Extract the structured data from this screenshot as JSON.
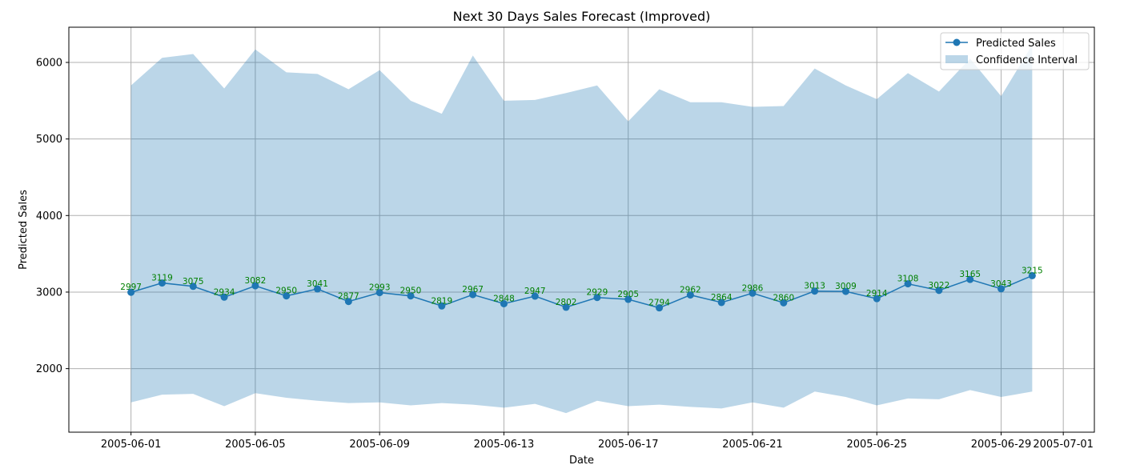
{
  "chart_data": {
    "type": "line",
    "title": "Next 30 Days Sales Forecast (Improved)",
    "xlabel": "Date",
    "ylabel": "Predicted Sales",
    "x": [
      "2005-06-01",
      "2005-06-02",
      "2005-06-03",
      "2005-06-04",
      "2005-06-05",
      "2005-06-06",
      "2005-06-07",
      "2005-06-08",
      "2005-06-09",
      "2005-06-10",
      "2005-06-11",
      "2005-06-12",
      "2005-06-13",
      "2005-06-14",
      "2005-06-15",
      "2005-06-16",
      "2005-06-17",
      "2005-06-18",
      "2005-06-19",
      "2005-06-20",
      "2005-06-21",
      "2005-06-22",
      "2005-06-23",
      "2005-06-24",
      "2005-06-25",
      "2005-06-26",
      "2005-06-27",
      "2005-06-28",
      "2005-06-29",
      "2005-06-30"
    ],
    "xlim": [
      "2005-05-30",
      "2005-07-02"
    ],
    "x_ticks": [
      "2005-06-01",
      "2005-06-05",
      "2005-06-09",
      "2005-06-13",
      "2005-06-17",
      "2005-06-21",
      "2005-06-25",
      "2005-06-29",
      "2005-07-01"
    ],
    "ylim": [
      1170,
      6460
    ],
    "y_ticks": [
      2000,
      3000,
      4000,
      5000,
      6000
    ],
    "grid": true,
    "legend_position": "top-right",
    "series": [
      {
        "name": "Predicted Sales",
        "color": "#1f77b4",
        "marker": "circle",
        "values": [
          2997,
          3119,
          3075,
          2934,
          3082,
          2950,
          3041,
          2877,
          2993,
          2950,
          2819,
          2967,
          2848,
          2947,
          2802,
          2929,
          2905,
          2794,
          2962,
          2864,
          2986,
          2860,
          3013,
          3009,
          2914,
          3108,
          3022,
          3165,
          3043,
          3215
        ],
        "labels": [
          "2997",
          "3119",
          "3075",
          "2934",
          "3082",
          "2950",
          "3041",
          "2877",
          "2993",
          "2950",
          "2819",
          "2967",
          "2848",
          "2947",
          "2802",
          "2929",
          "2905",
          "2794",
          "2962",
          "2864",
          "2986",
          "2860",
          "3013",
          "3009",
          "2914",
          "3108",
          "3022",
          "3165",
          "3043",
          "3215"
        ],
        "label_color": "#008000"
      },
      {
        "name": "Confidence Interval",
        "type": "band",
        "color": "#1f77b4",
        "opacity": 0.3,
        "upper": [
          5700,
          6060,
          6110,
          5660,
          6170,
          5870,
          5850,
          5650,
          5900,
          5500,
          5330,
          6090,
          5500,
          5510,
          5600,
          5700,
          5230,
          5650,
          5480,
          5480,
          5420,
          5430,
          5920,
          5700,
          5520,
          5860,
          5620,
          6050,
          5560,
          6230
        ],
        "lower": [
          1560,
          1660,
          1670,
          1510,
          1680,
          1620,
          1580,
          1550,
          1560,
          1520,
          1550,
          1530,
          1490,
          1540,
          1420,
          1580,
          1510,
          1530,
          1500,
          1480,
          1560,
          1490,
          1700,
          1630,
          1520,
          1610,
          1600,
          1720,
          1630,
          1700
        ]
      }
    ]
  }
}
